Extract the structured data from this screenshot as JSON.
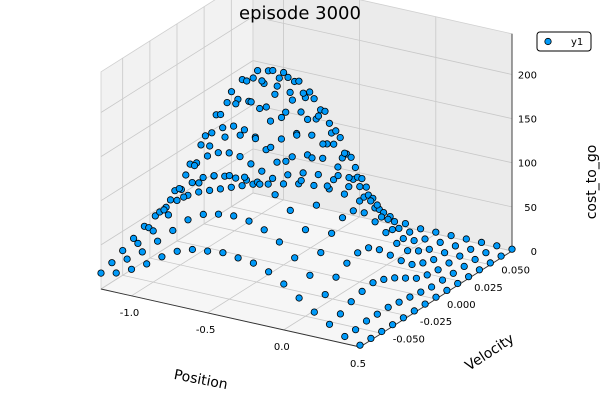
{
  "chart_data": {
    "type": "scatter",
    "projection": "3d",
    "title": "episode 3000",
    "xlabel": "Position",
    "ylabel": "Velocity",
    "zlabel": "cost_to_go",
    "xlim": [
      -1.2,
      0.5
    ],
    "ylim": [
      -0.07,
      0.07
    ],
    "zlim": [
      0,
      230
    ],
    "xticks": [
      "-1.0",
      "-0.5",
      "0.0",
      "0.5"
    ],
    "yticks": [
      "-0.050",
      "-0.025",
      "0.000",
      "0.025",
      "0.050"
    ],
    "zticks": [
      "0",
      "50",
      "100",
      "150",
      "200"
    ],
    "grid": true,
    "legend": {
      "position": "top-right",
      "entries": [
        "y1"
      ]
    },
    "series": [
      {
        "name": "y1",
        "color": "#009AF9",
        "edge_color": "#000000",
        "grid_x": [
          -1.2,
          -1.1,
          -1.0,
          -0.9,
          -0.8,
          -0.7,
          -0.6,
          -0.5,
          -0.4,
          -0.3,
          -0.2,
          -0.1,
          0.0,
          0.1,
          0.2,
          0.3,
          0.4,
          0.5
        ],
        "grid_y": [
          -0.07,
          -0.06,
          -0.05,
          -0.04,
          -0.03,
          -0.02,
          -0.01,
          0.0,
          0.01,
          0.02,
          0.03,
          0.04,
          0.05,
          0.06,
          0.07
        ],
        "z_rows": [
          [
            18,
            22,
            30,
            40,
            52,
            62,
            68,
            70,
            72,
            70,
            68,
            62,
            52,
            40,
            28,
            18,
            8,
            2
          ],
          [
            22,
            30,
            42,
            58,
            74,
            90,
            100,
            104,
            106,
            104,
            98,
            88,
            74,
            58,
            40,
            22,
            8,
            2
          ],
          [
            28,
            40,
            58,
            80,
            104,
            124,
            136,
            140,
            142,
            138,
            130,
            116,
            98,
            76,
            52,
            28,
            10,
            2
          ],
          [
            34,
            50,
            74,
            102,
            132,
            158,
            172,
            178,
            178,
            172,
            160,
            142,
            118,
            90,
            60,
            32,
            10,
            2
          ],
          [
            40,
            60,
            88,
            122,
            158,
            186,
            202,
            208,
            206,
            198,
            182,
            160,
            132,
            100,
            64,
            34,
            10,
            2
          ],
          [
            44,
            66,
            98,
            136,
            174,
            204,
            220,
            224,
            222,
            210,
            192,
            168,
            136,
            100,
            62,
            30,
            8,
            2
          ],
          [
            46,
            70,
            104,
            142,
            180,
            210,
            224,
            228,
            224,
            210,
            188,
            160,
            126,
            90,
            52,
            24,
            6,
            2
          ],
          [
            46,
            70,
            104,
            140,
            176,
            204,
            216,
            218,
            212,
            196,
            172,
            142,
            108,
            72,
            38,
            16,
            4,
            2
          ],
          [
            44,
            68,
            100,
            134,
            166,
            190,
            200,
            200,
            192,
            174,
            148,
            118,
            84,
            52,
            24,
            8,
            2,
            2
          ],
          [
            40,
            62,
            92,
            122,
            150,
            170,
            176,
            174,
            164,
            144,
            118,
            88,
            58,
            32,
            12,
            4,
            2,
            2
          ],
          [
            34,
            54,
            80,
            106,
            128,
            142,
            146,
            142,
            130,
            110,
            86,
            60,
            36,
            16,
            6,
            2,
            2,
            2
          ],
          [
            28,
            44,
            64,
            84,
            100,
            110,
            112,
            106,
            94,
            76,
            56,
            36,
            18,
            8,
            2,
            2,
            2,
            2
          ],
          [
            22,
            34,
            48,
            62,
            72,
            78,
            78,
            72,
            62,
            48,
            32,
            18,
            8,
            2,
            2,
            2,
            2,
            2
          ],
          [
            16,
            24,
            32,
            40,
            46,
            48,
            46,
            42,
            34,
            24,
            14,
            6,
            2,
            2,
            2,
            2,
            2,
            2
          ],
          [
            10,
            14,
            18,
            22,
            24,
            24,
            22,
            18,
            14,
            8,
            4,
            2,
            2,
            2,
            2,
            2,
            2,
            2
          ]
        ]
      }
    ]
  }
}
